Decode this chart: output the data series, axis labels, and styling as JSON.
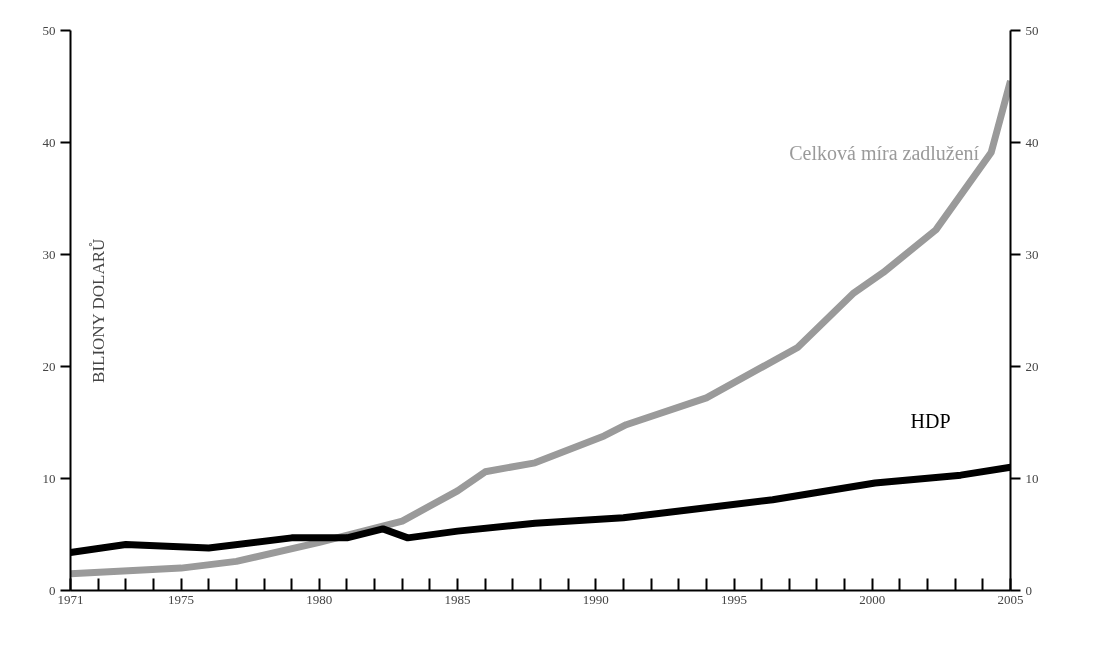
{
  "chart_data": {
    "type": "line",
    "ylabel": "BILIONY DOLARŮ",
    "xlim": [
      1971,
      2005
    ],
    "ylim": [
      0,
      50
    ],
    "y2lim": [
      0,
      50
    ],
    "xticks": [
      1971,
      {
        "value": 1972,
        "label": null
      },
      {
        "value": 1973,
        "label": null
      },
      {
        "value": 1974,
        "label": null
      },
      1975,
      {
        "value": 1976,
        "label": null
      },
      {
        "value": 1977,
        "label": null
      },
      {
        "value": 1978,
        "label": null
      },
      {
        "value": 1979,
        "label": null
      },
      1980,
      {
        "value": 1981,
        "label": null
      },
      {
        "value": 1982,
        "label": null
      },
      {
        "value": 1983,
        "label": null
      },
      {
        "value": 1984,
        "label": null
      },
      1985,
      {
        "value": 1986,
        "label": null
      },
      {
        "value": 1987,
        "label": null
      },
      {
        "value": 1988,
        "label": null
      },
      {
        "value": 1989,
        "label": null
      },
      1990,
      {
        "value": 1991,
        "label": null
      },
      {
        "value": 1992,
        "label": null
      },
      {
        "value": 1993,
        "label": null
      },
      {
        "value": 1994,
        "label": null
      },
      1995,
      {
        "value": 1996,
        "label": null
      },
      {
        "value": 1997,
        "label": null
      },
      {
        "value": 1998,
        "label": null
      },
      {
        "value": 1999,
        "label": null
      },
      2000,
      {
        "value": 2001,
        "label": null
      },
      {
        "value": 2002,
        "label": null
      },
      {
        "value": 2003,
        "label": null
      },
      {
        "value": 2004,
        "label": null
      },
      2005
    ],
    "yticks": [
      0,
      10,
      20,
      30,
      40,
      50
    ],
    "y2ticks": [
      0,
      10,
      20,
      30,
      40,
      50
    ],
    "grid": false,
    "legend": false,
    "marker": "none",
    "line_style": "solid",
    "series": [
      {
        "name": "Celková míra zadlužení",
        "color": "#9a9a9a",
        "x": [
          1971,
          1975,
          1977,
          1980,
          1983,
          1985,
          1986,
          1987.8,
          1990.3,
          1991.1,
          1994,
          1997.3,
          1999.3,
          2000.4,
          2002.3,
          2004.3,
          2005
        ],
        "values": [
          1.5,
          2.0,
          2.6,
          4.3,
          6.2,
          8.9,
          10.6,
          11.4,
          13.8,
          14.8,
          17.2,
          21.7,
          26.5,
          28.4,
          32.2,
          39.1,
          45.5
        ]
      },
      {
        "name": "HDP",
        "color": "#000000",
        "x": [
          1971,
          1973,
          1976,
          1979,
          1981,
          1982.3,
          1983.2,
          1985,
          1987.8,
          1991,
          1996.4,
          2000.1,
          2003.2,
          2005
        ],
        "values": [
          3.4,
          4.1,
          3.8,
          4.7,
          4.7,
          5.5,
          4.7,
          5.3,
          6.0,
          6.5,
          8.1,
          9.6,
          10.3,
          11.0
        ]
      }
    ]
  }
}
